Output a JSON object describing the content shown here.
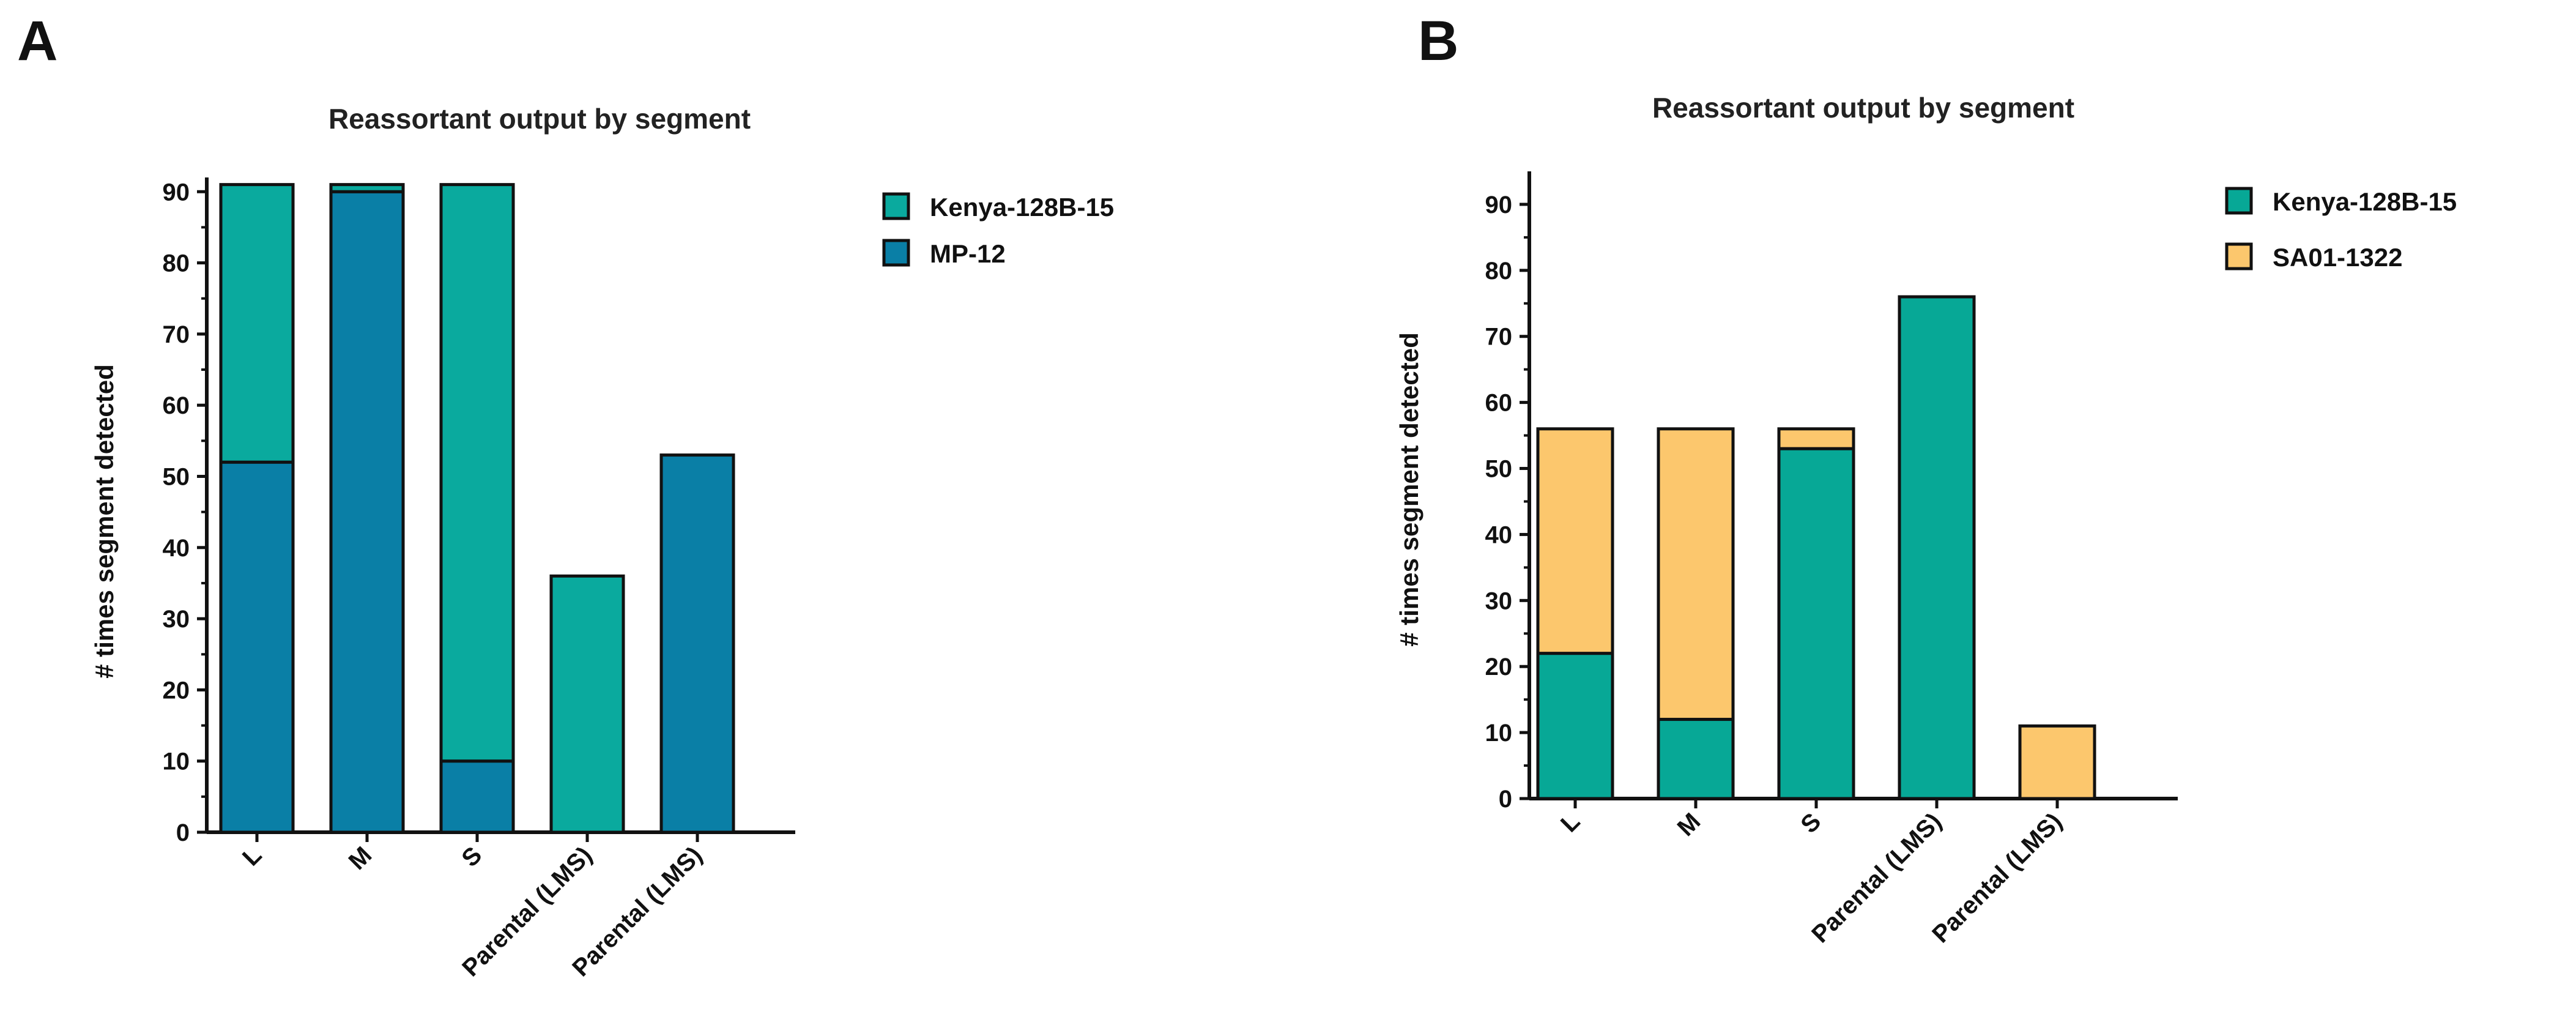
{
  "chart_data": [
    {
      "panel": "A",
      "type": "bar",
      "stacked": true,
      "title": "Reassortant output by segment",
      "xlabel": "",
      "ylabel": "# times segment detected",
      "ylim": [
        0,
        92
      ],
      "yticks": [
        0,
        10,
        20,
        30,
        40,
        50,
        60,
        70,
        80,
        90
      ],
      "categories": [
        "L",
        "M",
        "S",
        "Parental (LMS)",
        "Parental (LMS)"
      ],
      "series": [
        {
          "name": "MP-12",
          "color": "#0a7fa6",
          "values": [
            52,
            90,
            10,
            0,
            53
          ]
        },
        {
          "name": "Kenya-128B-15",
          "color": "#0aaa9e",
          "values": [
            39,
            1,
            81,
            36,
            0
          ]
        }
      ],
      "legend": [
        "Kenya-128B-15",
        "MP-12"
      ],
      "legend_position": "right"
    },
    {
      "panel": "B",
      "type": "bar",
      "stacked": true,
      "title": "Reassortant output by segment",
      "xlabel": "",
      "ylabel": "# times segment detected",
      "ylim": [
        0,
        95
      ],
      "yticks": [
        0,
        10,
        20,
        30,
        40,
        50,
        60,
        70,
        80,
        90
      ],
      "categories": [
        "L",
        "M",
        "S",
        "Parental (LMS)",
        "Parental (LMS)"
      ],
      "series": [
        {
          "name": "Kenya-128B-15",
          "color": "#07a896",
          "values": [
            22,
            12,
            53,
            76,
            0
          ]
        },
        {
          "name": "SA01-1322",
          "color": "#fcc76d",
          "values": [
            34,
            44,
            3,
            0,
            11
          ]
        }
      ],
      "legend": [
        "Kenya-128B-15",
        "SA01-1322"
      ],
      "legend_position": "right"
    }
  ]
}
